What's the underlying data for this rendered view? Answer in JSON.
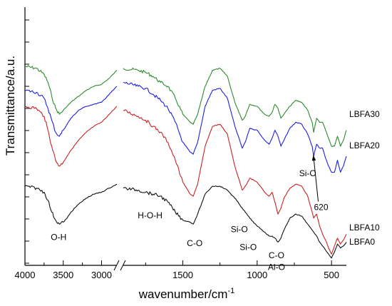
{
  "chart_data": {
    "type": "line",
    "xlabel": "wavenumber/cm",
    "xlabel_superscript": "-1",
    "ylabel": "Transmittance/a.u.",
    "x_reversed": true,
    "x_axis_break": {
      "between": [
        2800,
        1900
      ]
    },
    "x_ticks": [
      "4000",
      "3500",
      "3000",
      "1500",
      "1000",
      "500"
    ],
    "x_tick_values": [
      4000,
      3500,
      3000,
      1500,
      1000,
      500
    ],
    "series": [
      {
        "name": "LBFA30",
        "color": "#2e8b2e",
        "points": [
          [
            4000,
            0.9
          ],
          [
            3850,
            0.89
          ],
          [
            3750,
            0.86
          ],
          [
            3700,
            0.82
          ],
          [
            3650,
            0.75
          ],
          [
            3600,
            0.69
          ],
          [
            3550,
            0.66
          ],
          [
            3500,
            0.68
          ],
          [
            3450,
            0.7
          ],
          [
            3400,
            0.72
          ],
          [
            3300,
            0.75
          ],
          [
            3200,
            0.78
          ],
          [
            3100,
            0.8
          ],
          [
            3000,
            0.81
          ],
          [
            2900,
            0.84
          ],
          [
            2850,
            0.86
          ],
          [
            2800,
            0.88
          ],
          [
            1900,
            0.89
          ],
          [
            1800,
            0.88
          ],
          [
            1750,
            0.87
          ],
          [
            1700,
            0.85
          ],
          [
            1650,
            0.82
          ],
          [
            1600,
            0.8
          ],
          [
            1550,
            0.74
          ],
          [
            1500,
            0.66
          ],
          [
            1450,
            0.62
          ],
          [
            1430,
            0.61
          ],
          [
            1400,
            0.66
          ],
          [
            1350,
            0.8
          ],
          [
            1300,
            0.88
          ],
          [
            1250,
            0.89
          ],
          [
            1200,
            0.85
          ],
          [
            1150,
            0.72
          ],
          [
            1100,
            0.63
          ],
          [
            1080,
            0.65
          ],
          [
            1050,
            0.71
          ],
          [
            1000,
            0.7
          ],
          [
            950,
            0.66
          ],
          [
            920,
            0.65
          ],
          [
            900,
            0.67
          ],
          [
            880,
            0.71
          ],
          [
            860,
            0.69
          ],
          [
            840,
            0.64
          ],
          [
            820,
            0.66
          ],
          [
            780,
            0.7
          ],
          [
            740,
            0.73
          ],
          [
            700,
            0.72
          ],
          [
            660,
            0.68
          ],
          [
            630,
            0.62
          ],
          [
            620,
            0.57
          ],
          [
            600,
            0.64
          ],
          [
            580,
            0.62
          ],
          [
            560,
            0.62
          ],
          [
            540,
            0.58
          ],
          [
            520,
            0.54
          ],
          [
            500,
            0.5
          ],
          [
            480,
            0.5
          ],
          [
            460,
            0.55
          ],
          [
            440,
            0.5
          ],
          [
            420,
            0.53
          ],
          [
            400,
            0.58
          ]
        ]
      },
      {
        "name": "LBFA20",
        "color": "#1f1fe6",
        "points": [
          [
            4000,
            0.78
          ],
          [
            3850,
            0.77
          ],
          [
            3750,
            0.74
          ],
          [
            3700,
            0.69
          ],
          [
            3650,
            0.63
          ],
          [
            3600,
            0.57
          ],
          [
            3550,
            0.55
          ],
          [
            3500,
            0.58
          ],
          [
            3450,
            0.61
          ],
          [
            3400,
            0.64
          ],
          [
            3300,
            0.68
          ],
          [
            3200,
            0.7
          ],
          [
            3100,
            0.71
          ],
          [
            3000,
            0.72
          ],
          [
            2900,
            0.76
          ],
          [
            2850,
            0.78
          ],
          [
            2800,
            0.8
          ],
          [
            1900,
            0.82
          ],
          [
            1800,
            0.8
          ],
          [
            1750,
            0.79
          ],
          [
            1700,
            0.76
          ],
          [
            1650,
            0.73
          ],
          [
            1600,
            0.69
          ],
          [
            1550,
            0.62
          ],
          [
            1500,
            0.52
          ],
          [
            1450,
            0.47
          ],
          [
            1430,
            0.46
          ],
          [
            1400,
            0.52
          ],
          [
            1350,
            0.7
          ],
          [
            1300,
            0.78
          ],
          [
            1250,
            0.79
          ],
          [
            1200,
            0.74
          ],
          [
            1150,
            0.6
          ],
          [
            1100,
            0.49
          ],
          [
            1080,
            0.52
          ],
          [
            1050,
            0.59
          ],
          [
            1000,
            0.58
          ],
          [
            950,
            0.53
          ],
          [
            920,
            0.51
          ],
          [
            900,
            0.54
          ],
          [
            880,
            0.58
          ],
          [
            860,
            0.55
          ],
          [
            840,
            0.5
          ],
          [
            820,
            0.53
          ],
          [
            780,
            0.59
          ],
          [
            740,
            0.62
          ],
          [
            700,
            0.61
          ],
          [
            660,
            0.56
          ],
          [
            630,
            0.5
          ],
          [
            620,
            0.45
          ],
          [
            600,
            0.51
          ],
          [
            580,
            0.49
          ],
          [
            560,
            0.49
          ],
          [
            540,
            0.44
          ],
          [
            520,
            0.4
          ],
          [
            500,
            0.37
          ],
          [
            480,
            0.37
          ],
          [
            460,
            0.43
          ],
          [
            440,
            0.37
          ],
          [
            420,
            0.4
          ],
          [
            400,
            0.45
          ]
        ]
      },
      {
        "name": "LBFA10",
        "color": "#cc2222",
        "points": [
          [
            4000,
            0.7
          ],
          [
            3850,
            0.69
          ],
          [
            3750,
            0.65
          ],
          [
            3700,
            0.58
          ],
          [
            3650,
            0.5
          ],
          [
            3600,
            0.43
          ],
          [
            3550,
            0.4
          ],
          [
            3500,
            0.42
          ],
          [
            3450,
            0.45
          ],
          [
            3400,
            0.48
          ],
          [
            3300,
            0.53
          ],
          [
            3200,
            0.57
          ],
          [
            3100,
            0.6
          ],
          [
            3000,
            0.62
          ],
          [
            2900,
            0.66
          ],
          [
            2850,
            0.68
          ],
          [
            2800,
            0.7
          ],
          [
            1900,
            0.68
          ],
          [
            1800,
            0.65
          ],
          [
            1750,
            0.63
          ],
          [
            1700,
            0.6
          ],
          [
            1650,
            0.57
          ],
          [
            1600,
            0.52
          ],
          [
            1550,
            0.43
          ],
          [
            1500,
            0.32
          ],
          [
            1450,
            0.26
          ],
          [
            1430,
            0.25
          ],
          [
            1400,
            0.31
          ],
          [
            1350,
            0.5
          ],
          [
            1300,
            0.6
          ],
          [
            1250,
            0.61
          ],
          [
            1200,
            0.56
          ],
          [
            1150,
            0.4
          ],
          [
            1100,
            0.28
          ],
          [
            1080,
            0.3
          ],
          [
            1050,
            0.34
          ],
          [
            1000,
            0.32
          ],
          [
            950,
            0.27
          ],
          [
            920,
            0.25
          ],
          [
            900,
            0.27
          ],
          [
            880,
            0.22
          ],
          [
            860,
            0.16
          ],
          [
            840,
            0.19
          ],
          [
            820,
            0.24
          ],
          [
            780,
            0.29
          ],
          [
            740,
            0.31
          ],
          [
            700,
            0.3
          ],
          [
            660,
            0.25
          ],
          [
            630,
            0.17
          ],
          [
            620,
            0.14
          ],
          [
            600,
            0.16
          ],
          [
            580,
            0.1
          ],
          [
            560,
            0.06
          ],
          [
            540,
            0.03
          ],
          [
            520,
            -0.01
          ],
          [
            500,
            -0.04
          ],
          [
            480,
            0.0
          ],
          [
            460,
            0.04
          ],
          [
            440,
            0.01
          ],
          [
            420,
            0.03
          ],
          [
            400,
            0.06
          ]
        ]
      },
      {
        "name": "LBFA0",
        "color": "#111111",
        "points": [
          [
            4000,
            0.3
          ],
          [
            3850,
            0.29
          ],
          [
            3750,
            0.27
          ],
          [
            3700,
            0.23
          ],
          [
            3650,
            0.17
          ],
          [
            3600,
            0.13
          ],
          [
            3550,
            0.11
          ],
          [
            3500,
            0.12
          ],
          [
            3450,
            0.14
          ],
          [
            3400,
            0.17
          ],
          [
            3300,
            0.21
          ],
          [
            3200,
            0.24
          ],
          [
            3100,
            0.26
          ],
          [
            3000,
            0.27
          ],
          [
            2900,
            0.29
          ],
          [
            2850,
            0.3
          ],
          [
            2800,
            0.31
          ],
          [
            1900,
            0.29
          ],
          [
            1800,
            0.28
          ],
          [
            1750,
            0.27
          ],
          [
            1700,
            0.26
          ],
          [
            1650,
            0.25
          ],
          [
            1600,
            0.22
          ],
          [
            1550,
            0.17
          ],
          [
            1500,
            0.13
          ],
          [
            1450,
            0.12
          ],
          [
            1430,
            0.11
          ],
          [
            1400,
            0.16
          ],
          [
            1350,
            0.26
          ],
          [
            1300,
            0.3
          ],
          [
            1250,
            0.3
          ],
          [
            1200,
            0.28
          ],
          [
            1150,
            0.24
          ],
          [
            1100,
            0.19
          ],
          [
            1050,
            0.14
          ],
          [
            1000,
            0.1
          ],
          [
            950,
            0.07
          ],
          [
            920,
            0.05
          ],
          [
            900,
            0.05
          ],
          [
            880,
            0.04
          ],
          [
            860,
            0.02
          ],
          [
            840,
            0.04
          ],
          [
            820,
            0.08
          ],
          [
            780,
            0.14
          ],
          [
            740,
            0.16
          ],
          [
            700,
            0.15
          ],
          [
            660,
            0.11
          ],
          [
            630,
            0.08
          ],
          [
            620,
            0.07
          ],
          [
            600,
            0.05
          ],
          [
            580,
            0.02
          ],
          [
            560,
            0.0
          ],
          [
            540,
            -0.02
          ],
          [
            520,
            -0.04
          ],
          [
            500,
            -0.06
          ],
          [
            480,
            -0.03
          ],
          [
            460,
            0.01
          ],
          [
            440,
            -0.01
          ],
          [
            420,
            0.0
          ],
          [
            400,
            0.02
          ]
        ]
      }
    ],
    "annotations": [
      {
        "text": "O-H",
        "x": 3560,
        "y": 0.03
      },
      {
        "text": "H-O-H",
        "x": 1720,
        "y": 0.14
      },
      {
        "text": "C-O",
        "x": 1420,
        "y": 0.0
      },
      {
        "text": "Si-O",
        "x": 1120,
        "y": 0.07
      },
      {
        "text": "Si-O",
        "x": 1060,
        "y": -0.02
      },
      {
        "text": "C-O",
        "x": 870,
        "y": -0.06
      },
      {
        "text": "Al-O",
        "x": 870,
        "y": -0.12
      },
      {
        "text": "Si-O",
        "x": 660,
        "y": 0.35
      },
      {
        "text": "620",
        "x": 570,
        "y": 0.18
      }
    ],
    "series_labels": [
      {
        "text": "LBFA30",
        "series": 0
      },
      {
        "text": "LBFA20",
        "series": 1
      },
      {
        "text": "LBFA10",
        "series": 2
      },
      {
        "text": "LBFA0",
        "series": 3
      }
    ]
  }
}
